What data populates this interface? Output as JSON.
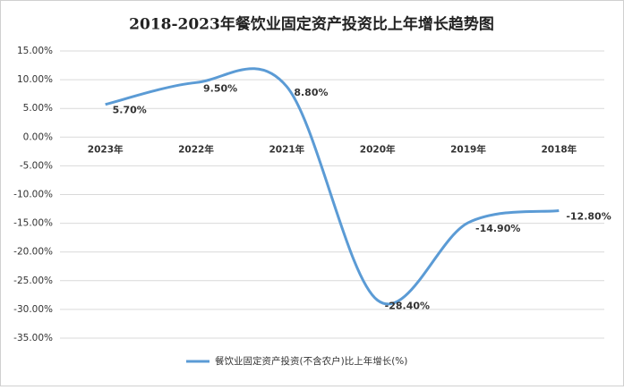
{
  "chart_data": {
    "type": "line",
    "title": "2018-2023年餐饮业固定资产投资比上年增长趋势图",
    "categories": [
      "2023年",
      "2022年",
      "2021年",
      "2020年",
      "2019年",
      "2018年"
    ],
    "series": [
      {
        "name": "餐饮业固定资产投资(不含农户)比上年增长(%)",
        "color": "#5b9bd5",
        "values": [
          5.7,
          9.5,
          8.8,
          -28.4,
          -14.9,
          -12.8
        ],
        "value_labels": [
          "5.70%",
          "9.50%",
          "8.80%",
          "-28.40%",
          "-14.90%",
          "-12.80%"
        ]
      }
    ],
    "ylim": [
      -35,
      15
    ],
    "yticks": [
      {
        "value": 15,
        "label": "15.00%"
      },
      {
        "value": 10,
        "label": "10.00%"
      },
      {
        "value": 5,
        "label": "5.00%"
      },
      {
        "value": 0,
        "label": "0.00%"
      },
      {
        "value": -5,
        "label": "-5.00%"
      },
      {
        "value": -10,
        "label": "-10.00%"
      },
      {
        "value": -15,
        "label": "-15.00%"
      },
      {
        "value": -20,
        "label": "-20.00%"
      },
      {
        "value": -25,
        "label": "-25.00%"
      },
      {
        "value": -30,
        "label": "-30.00%"
      },
      {
        "value": -35,
        "label": "-35.00%"
      }
    ],
    "grid": true,
    "smooth": true,
    "legend": "bottom"
  }
}
